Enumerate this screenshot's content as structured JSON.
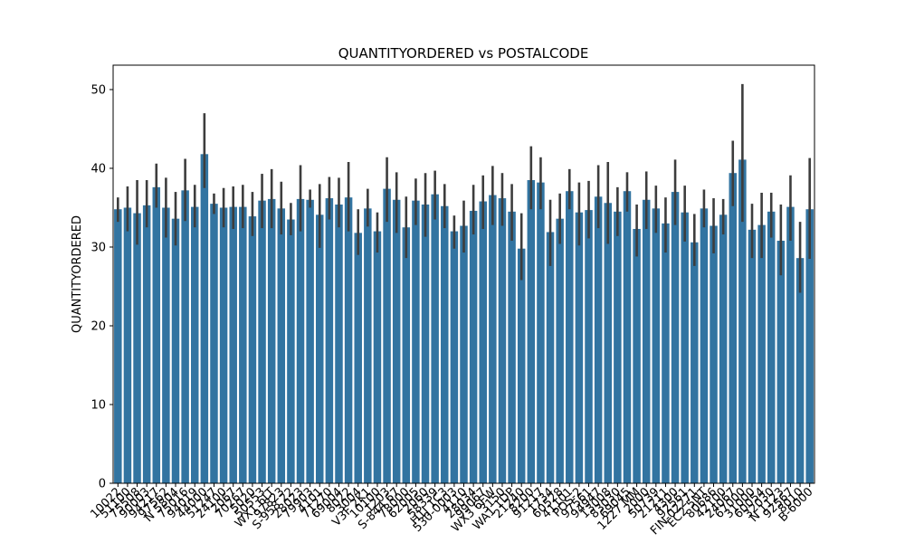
{
  "chart_data": {
    "type": "bar",
    "title": "QUANTITYORDERED vs POSTALCODE",
    "ylabel": "QUANTITYORDERED",
    "color": "#3274a1",
    "error_color": "#3d3d3d",
    "categories": [
      "10022",
      "51100",
      "75508",
      "90003",
      "94217",
      "97562",
      "N 5804",
      "75016",
      "94019",
      "44000",
      "51247",
      "24100",
      "2067",
      "70267",
      "5020",
      "50553",
      "WX1 6LT",
      "97823",
      "S-958 22",
      "28023",
      "79903",
      "4101",
      "71270",
      "69004",
      "8022",
      "3004",
      "V3F 2K1",
      "10100",
      "1203",
      "S-844 67",
      "78000",
      "62005",
      "2060",
      "58339",
      "H1J 1C3",
      "530-0003",
      "4110",
      "28034",
      "99067",
      "WX3 6FW",
      "3150",
      "WA1 1DP",
      "21240",
      "8200",
      "91217",
      "1734",
      "60528",
      "41101",
      "POS-2",
      "97561",
      "94947",
      "13008",
      "83030",
      "69045",
      "1227 MM",
      "2000",
      "50739",
      "21211",
      "4300",
      "92561",
      "FIN-02271",
      "EC2 5NT",
      "80686",
      "42100",
      "24067",
      "67000",
      "31000",
      "60054",
      "32030",
      "N 1123",
      "92567",
      "8010",
      "B-6000"
    ],
    "values": [
      34.8,
      35.0,
      34.3,
      35.3,
      37.6,
      35.0,
      33.6,
      37.2,
      35.1,
      41.8,
      35.5,
      35.0,
      35.1,
      35.1,
      33.9,
      35.9,
      36.1,
      34.9,
      33.5,
      36.1,
      36.0,
      34.1,
      36.2,
      35.4,
      36.3,
      31.8,
      34.9,
      32.0,
      37.4,
      36.0,
      32.5,
      35.9,
      35.4,
      36.7,
      35.2,
      32.0,
      32.7,
      34.6,
      35.8,
      36.6,
      36.2,
      34.5,
      29.8,
      38.5,
      38.2,
      31.9,
      33.6,
      37.1,
      34.4,
      34.7,
      36.4,
      35.6,
      34.5,
      37.1,
      32.3,
      36.0,
      34.9,
      33.0,
      37.0,
      34.4,
      30.6,
      34.9,
      32.7,
      34.1,
      39.4,
      41.1,
      32.2,
      32.8,
      34.5,
      30.8,
      35.1,
      28.6,
      34.8
    ],
    "ci": [
      [
        33.2,
        36.3
      ],
      [
        32.0,
        37.7
      ],
      [
        30.3,
        38.5
      ],
      [
        32.5,
        38.5
      ],
      [
        35.0,
        40.6
      ],
      [
        31.2,
        38.8
      ],
      [
        30.2,
        37.0
      ],
      [
        33.3,
        41.2
      ],
      [
        32.5,
        37.9
      ],
      [
        37.5,
        47.0
      ],
      [
        34.2,
        36.8
      ],
      [
        32.5,
        37.5
      ],
      [
        32.3,
        37.7
      ],
      [
        32.4,
        37.9
      ],
      [
        31.4,
        37.0
      ],
      [
        32.4,
        39.3
      ],
      [
        32.4,
        39.9
      ],
      [
        31.6,
        38.3
      ],
      [
        31.5,
        35.6
      ],
      [
        32.0,
        40.4
      ],
      [
        35.0,
        37.3
      ],
      [
        29.9,
        38.0
      ],
      [
        33.5,
        38.9
      ],
      [
        32.5,
        38.8
      ],
      [
        32.0,
        40.8
      ],
      [
        29.0,
        34.8
      ],
      [
        32.6,
        37.4
      ],
      [
        29.3,
        34.4
      ],
      [
        33.2,
        41.4
      ],
      [
        31.8,
        39.5
      ],
      [
        28.6,
        36.4
      ],
      [
        32.8,
        38.7
      ],
      [
        31.3,
        39.4
      ],
      [
        33.5,
        39.7
      ],
      [
        32.4,
        38.0
      ],
      [
        29.8,
        34.0
      ],
      [
        29.3,
        35.9
      ],
      [
        31.6,
        37.9
      ],
      [
        32.3,
        39.1
      ],
      [
        32.8,
        40.3
      ],
      [
        32.7,
        39.4
      ],
      [
        30.8,
        38.0
      ],
      [
        25.8,
        34.3
      ],
      [
        34.8,
        42.8
      ],
      [
        34.8,
        41.4
      ],
      [
        27.6,
        36.0
      ],
      [
        30.4,
        36.8
      ],
      [
        34.8,
        39.9
      ],
      [
        30.2,
        38.2
      ],
      [
        31.1,
        38.4
      ],
      [
        32.4,
        40.4
      ],
      [
        30.4,
        40.8
      ],
      [
        31.4,
        37.6
      ],
      [
        34.5,
        39.5
      ],
      [
        28.8,
        35.4
      ],
      [
        32.3,
        39.6
      ],
      [
        31.8,
        37.8
      ],
      [
        29.3,
        36.3
      ],
      [
        32.8,
        41.1
      ],
      [
        30.7,
        37.8
      ],
      [
        27.6,
        34.2
      ],
      [
        32.5,
        37.3
      ],
      [
        29.2,
        36.2
      ],
      [
        31.6,
        36.1
      ],
      [
        35.2,
        43.5
      ],
      [
        33.2,
        50.7
      ],
      [
        28.6,
        35.5
      ],
      [
        28.6,
        36.9
      ],
      [
        31.2,
        36.9
      ],
      [
        26.4,
        35.4
      ],
      [
        30.8,
        39.1
      ],
      [
        24.2,
        33.2
      ],
      [
        28.5,
        41.3
      ]
    ],
    "ylim": [
      0,
      53.1
    ],
    "yticks": [
      0,
      10,
      20,
      30,
      40,
      50
    ]
  }
}
